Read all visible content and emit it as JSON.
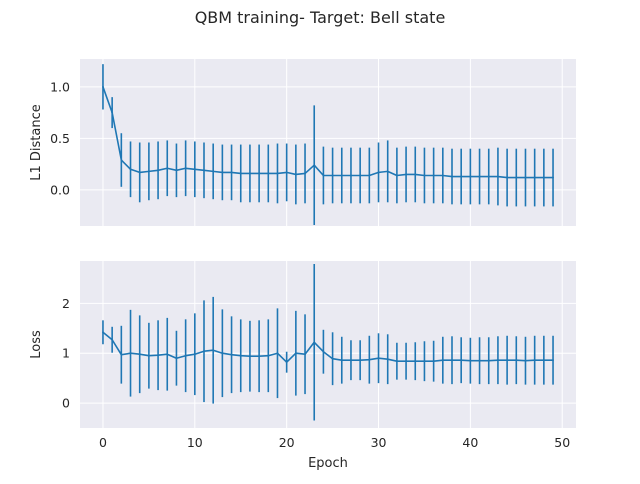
{
  "figure": {
    "title": "QBM training- Target: Bell state",
    "line_color": "#1f77b4",
    "panel_bg": "#eaeaf2",
    "grid_color": "#ffffff"
  },
  "chart_data": [
    {
      "type": "line",
      "error_bars": true,
      "xlabel": "",
      "ylabel": "L1 Distance",
      "xlim": [
        -2.5,
        51.5
      ],
      "ylim": [
        -0.35,
        1.27
      ],
      "xticks": [
        0,
        10,
        20,
        30,
        40,
        50
      ],
      "xtick_labels_shown": false,
      "yticks": [
        0.0,
        0.5,
        1.0
      ],
      "ytick_labels": [
        "0.0",
        "0.5",
        "1.0"
      ],
      "grid": true,
      "series": [
        {
          "x": [
            0,
            1,
            2,
            3,
            4,
            5,
            6,
            7,
            8,
            9,
            10,
            11,
            12,
            13,
            14,
            15,
            16,
            17,
            18,
            19,
            20,
            21,
            22,
            23,
            24,
            25,
            26,
            27,
            28,
            29,
            30,
            31,
            32,
            33,
            34,
            35,
            36,
            37,
            38,
            39,
            40,
            41,
            42,
            43,
            44,
            45,
            46,
            47,
            48,
            49
          ],
          "y": [
            1.0,
            0.75,
            0.29,
            0.2,
            0.17,
            0.18,
            0.19,
            0.21,
            0.19,
            0.21,
            0.2,
            0.19,
            0.18,
            0.17,
            0.17,
            0.16,
            0.16,
            0.16,
            0.16,
            0.16,
            0.17,
            0.15,
            0.16,
            0.24,
            0.14,
            0.14,
            0.14,
            0.14,
            0.14,
            0.14,
            0.17,
            0.18,
            0.14,
            0.15,
            0.15,
            0.14,
            0.14,
            0.14,
            0.13,
            0.13,
            0.13,
            0.13,
            0.13,
            0.13,
            0.12,
            0.12,
            0.12,
            0.12,
            0.12,
            0.12
          ],
          "err": [
            0.22,
            0.15,
            0.26,
            0.27,
            0.29,
            0.28,
            0.28,
            0.27,
            0.26,
            0.27,
            0.27,
            0.27,
            0.27,
            0.27,
            0.27,
            0.28,
            0.28,
            0.28,
            0.28,
            0.29,
            0.28,
            0.29,
            0.29,
            0.58,
            0.28,
            0.27,
            0.27,
            0.27,
            0.27,
            0.27,
            0.29,
            0.3,
            0.27,
            0.27,
            0.27,
            0.27,
            0.27,
            0.27,
            0.27,
            0.27,
            0.27,
            0.27,
            0.27,
            0.28,
            0.28,
            0.28,
            0.28,
            0.28,
            0.28,
            0.28
          ]
        }
      ]
    },
    {
      "type": "line",
      "error_bars": true,
      "xlabel": "Epoch",
      "ylabel": "Loss",
      "xlim": [
        -2.5,
        51.5
      ],
      "ylim": [
        -0.5,
        2.85
      ],
      "xticks": [
        0,
        10,
        20,
        30,
        40,
        50
      ],
      "xtick_labels": [
        "0",
        "10",
        "20",
        "30",
        "40",
        "50"
      ],
      "yticks": [
        0,
        1,
        2
      ],
      "ytick_labels": [
        "0",
        "1",
        "2"
      ],
      "grid": true,
      "series": [
        {
          "x": [
            0,
            1,
            2,
            3,
            4,
            5,
            6,
            7,
            8,
            9,
            10,
            11,
            12,
            13,
            14,
            15,
            16,
            17,
            18,
            19,
            20,
            21,
            22,
            23,
            24,
            25,
            26,
            27,
            28,
            29,
            30,
            31,
            32,
            33,
            34,
            35,
            36,
            37,
            38,
            39,
            40,
            41,
            42,
            43,
            44,
            45,
            46,
            47,
            48,
            49
          ],
          "y": [
            1.42,
            1.27,
            0.97,
            1.0,
            0.98,
            0.95,
            0.96,
            0.98,
            0.9,
            0.95,
            0.98,
            1.04,
            1.06,
            1.0,
            0.97,
            0.95,
            0.94,
            0.94,
            0.95,
            1.0,
            0.82,
            1.0,
            0.98,
            1.22,
            1.03,
            0.89,
            0.86,
            0.86,
            0.86,
            0.87,
            0.9,
            0.88,
            0.84,
            0.84,
            0.84,
            0.84,
            0.84,
            0.86,
            0.86,
            0.86,
            0.85,
            0.85,
            0.85,
            0.86,
            0.86,
            0.86,
            0.85,
            0.86,
            0.86,
            0.86
          ],
          "err": [
            0.24,
            0.26,
            0.58,
            0.87,
            0.78,
            0.66,
            0.7,
            0.73,
            0.55,
            0.73,
            0.82,
            1.02,
            1.07,
            0.88,
            0.77,
            0.73,
            0.71,
            0.72,
            0.73,
            0.9,
            0.21,
            0.85,
            0.8,
            1.57,
            0.44,
            0.53,
            0.47,
            0.4,
            0.4,
            0.48,
            0.5,
            0.5,
            0.37,
            0.37,
            0.38,
            0.4,
            0.41,
            0.47,
            0.48,
            0.46,
            0.46,
            0.47,
            0.47,
            0.48,
            0.49,
            0.48,
            0.48,
            0.49,
            0.49,
            0.49
          ]
        }
      ]
    }
  ]
}
